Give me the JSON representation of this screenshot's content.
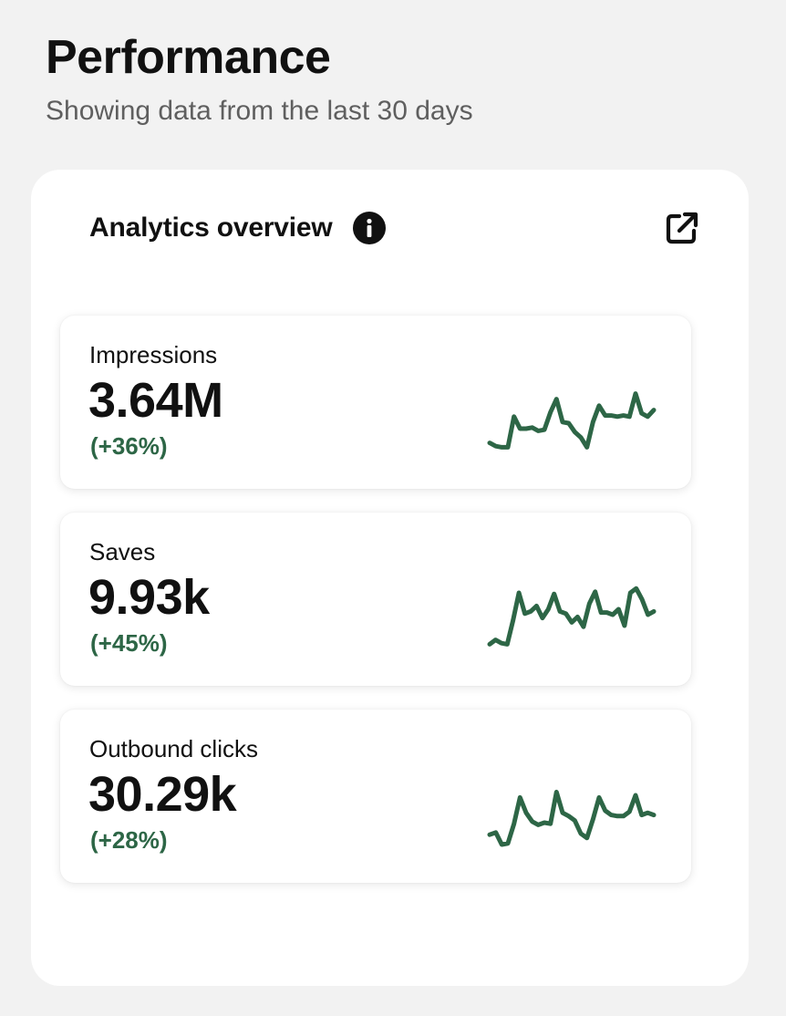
{
  "header": {
    "title": "Performance",
    "subtitle": "Showing data from the last 30 days"
  },
  "panel": {
    "title": "Analytics overview",
    "info_icon": "info-icon",
    "external_link_icon": "external-link-icon"
  },
  "colors": {
    "positive": "#2d6646",
    "sparkline": "#2d6646"
  },
  "metrics": [
    {
      "label": "Impressions",
      "value": "3.64M",
      "change": "(+36%)",
      "trend": [
        12,
        9,
        8,
        8,
        36,
        25,
        25,
        26,
        23,
        24,
        40,
        52,
        31,
        30,
        22,
        17,
        8,
        31,
        46,
        37,
        37,
        36,
        37,
        36,
        57,
        39,
        36,
        42
      ]
    },
    {
      "label": "Saves",
      "value": "9.93k",
      "change": "(+45%)",
      "trend": [
        8,
        12,
        9,
        8,
        30,
        55,
        36,
        38,
        43,
        32,
        40,
        54,
        38,
        36,
        28,
        33,
        24,
        45,
        56,
        37,
        37,
        35,
        40,
        25,
        55,
        59,
        49,
        35,
        38
      ]
    },
    {
      "label": "Outbound clicks",
      "value": "30.29k",
      "change": "(+28%)",
      "trend": [
        14,
        16,
        5,
        6,
        24,
        48,
        34,
        26,
        23,
        25,
        24,
        53,
        34,
        31,
        27,
        15,
        11,
        28,
        48,
        36,
        32,
        31,
        31,
        35,
        50,
        32,
        34,
        32
      ]
    }
  ]
}
